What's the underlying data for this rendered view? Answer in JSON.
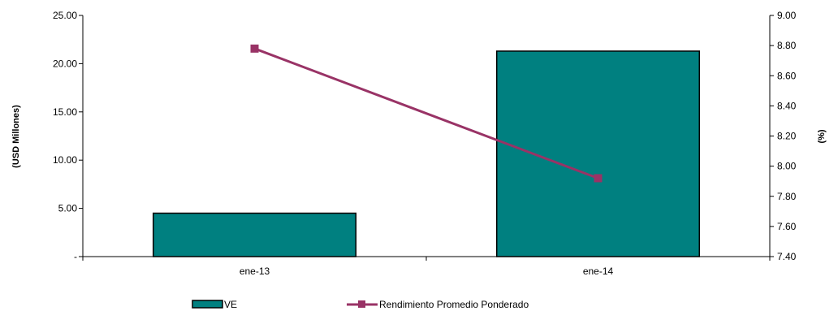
{
  "chart_data": {
    "type": "bar",
    "categories": [
      "ene-13",
      "ene-14"
    ],
    "series": [
      {
        "name": "VE",
        "type": "bar",
        "axis": "left",
        "values": [
          4.5,
          21.3
        ],
        "color": "#008080"
      },
      {
        "name": "Rendimiento Promedio Ponderado",
        "type": "line",
        "axis": "right",
        "values": [
          8.78,
          7.92
        ],
        "color": "#993366"
      }
    ],
    "ylabel": "(USD Millones)",
    "y2label": "(%)",
    "ylim": [
      0,
      25
    ],
    "y2lim": [
      7.4,
      9.0
    ],
    "yticks": [
      0,
      5,
      10,
      15,
      20,
      25
    ],
    "ytick_labels": [
      "-",
      "5.00",
      "10.00",
      "15.00",
      "20.00",
      "25.00"
    ],
    "y2ticks": [
      7.4,
      7.6,
      7.8,
      8.0,
      8.2,
      8.4,
      8.6,
      8.8,
      9.0
    ],
    "y2tick_labels": [
      "7.40",
      "7.60",
      "7.80",
      "8.00",
      "8.20",
      "8.40",
      "8.60",
      "8.80",
      "9.00"
    ],
    "grid": false,
    "legend_position": "bottom"
  }
}
